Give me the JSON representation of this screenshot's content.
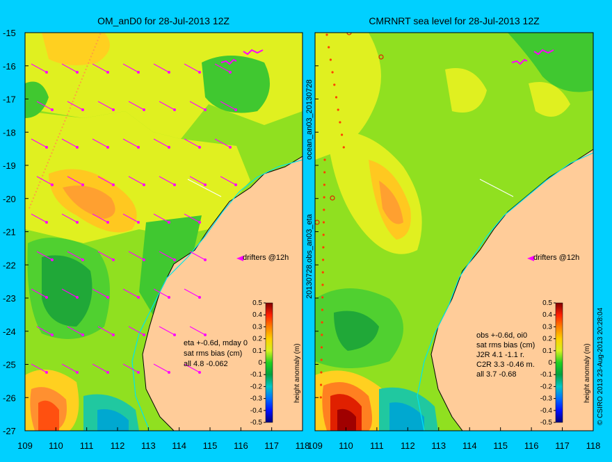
{
  "left_panel": {
    "title": "OM_anD0 for 28-Jul-2013 12Z",
    "stats": [
      "eta +-0.6d, mday 0",
      "sat rms bias (cm)",
      "all 4.8 -0.062"
    ],
    "drifters_label": "drifters @12h"
  },
  "right_panel": {
    "title": "CMRNRT sea level  for 28-Jul-2013 12Z",
    "stats": [
      "obs +-0.6d, oi0",
      "sat rms bias (cm)",
      "J2R   4.1 -1.1 r.",
      "C2R   3.3 -0.46 m.",
      "all   3.7 -0.68"
    ],
    "drifters_label": "drifters @12h"
  },
  "middle_labels": {
    "top": "ocean_an03_20130728",
    "bottom": "20130728.obs_an03_eta"
  },
  "credit": "© CSIRO 2013  23-Aug-2013 20:28:04",
  "colorbar": {
    "title": "height anomaly (m)",
    "ticks": [
      "0.5",
      "0.4",
      "0.3",
      "0.2",
      "0.1",
      "0",
      "-0.1",
      "-0.2",
      "-0.3",
      "-0.4",
      "-0.5"
    ]
  },
  "lat_ticks": [
    "-15",
    "-16",
    "-17",
    "-18",
    "-19",
    "-20",
    "-21",
    "-22",
    "-23",
    "-24",
    "-25",
    "-26",
    "-27"
  ],
  "lon_ticks": [
    "109",
    "110",
    "111",
    "112",
    "113",
    "114",
    "115",
    "116",
    "117",
    "118"
  ],
  "colors": {
    "background": "#00d0ff",
    "land": "#ffcc99",
    "accent_drifter": "#ff00ff",
    "coast_line": "#00e5ee"
  }
}
